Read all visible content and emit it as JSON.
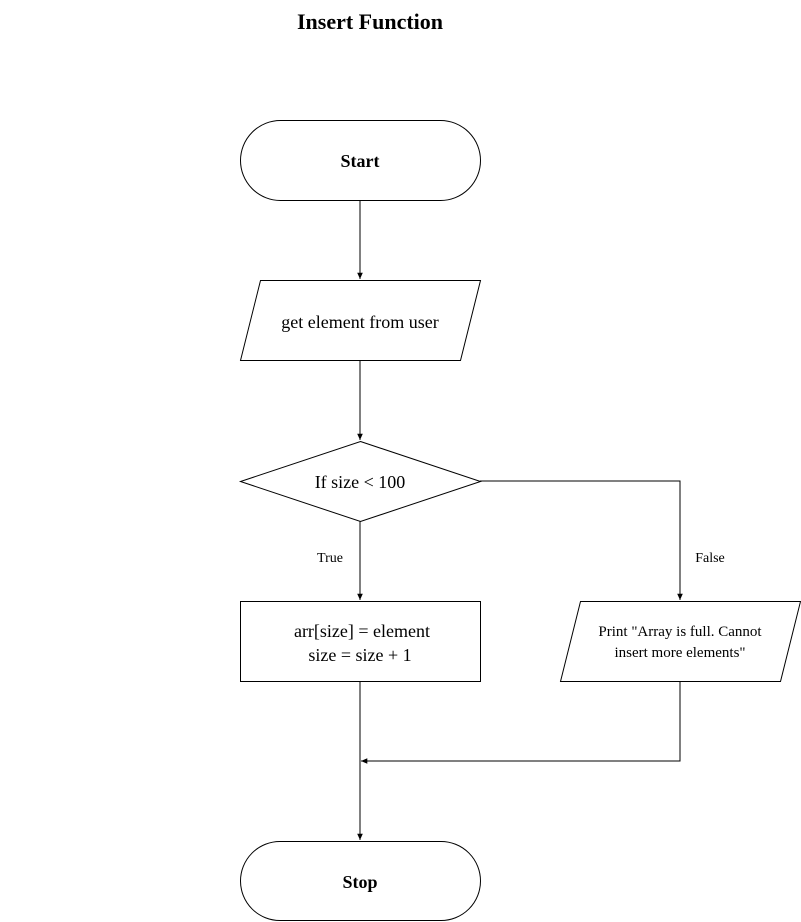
{
  "title": "Insert Function",
  "nodes": {
    "start": {
      "label": "Start",
      "shape": "terminator"
    },
    "input": {
      "label": "get element from user",
      "shape": "parallelogram"
    },
    "decision": {
      "label": "If size < 100",
      "shape": "diamond"
    },
    "process": {
      "lines": [
        "arr[size] = element",
        "size = size + 1"
      ],
      "shape": "rectangle"
    },
    "output": {
      "lines": [
        "Print \"Array is full. Cannot",
        "insert more elements\""
      ],
      "shape": "parallelogram"
    },
    "stop": {
      "label": "Stop",
      "shape": "terminator"
    }
  },
  "edges": {
    "true_label": "True",
    "false_label": "False"
  },
  "colors": {
    "stroke": "#000000",
    "fill": "#ffffff",
    "background": "#ffffff"
  }
}
